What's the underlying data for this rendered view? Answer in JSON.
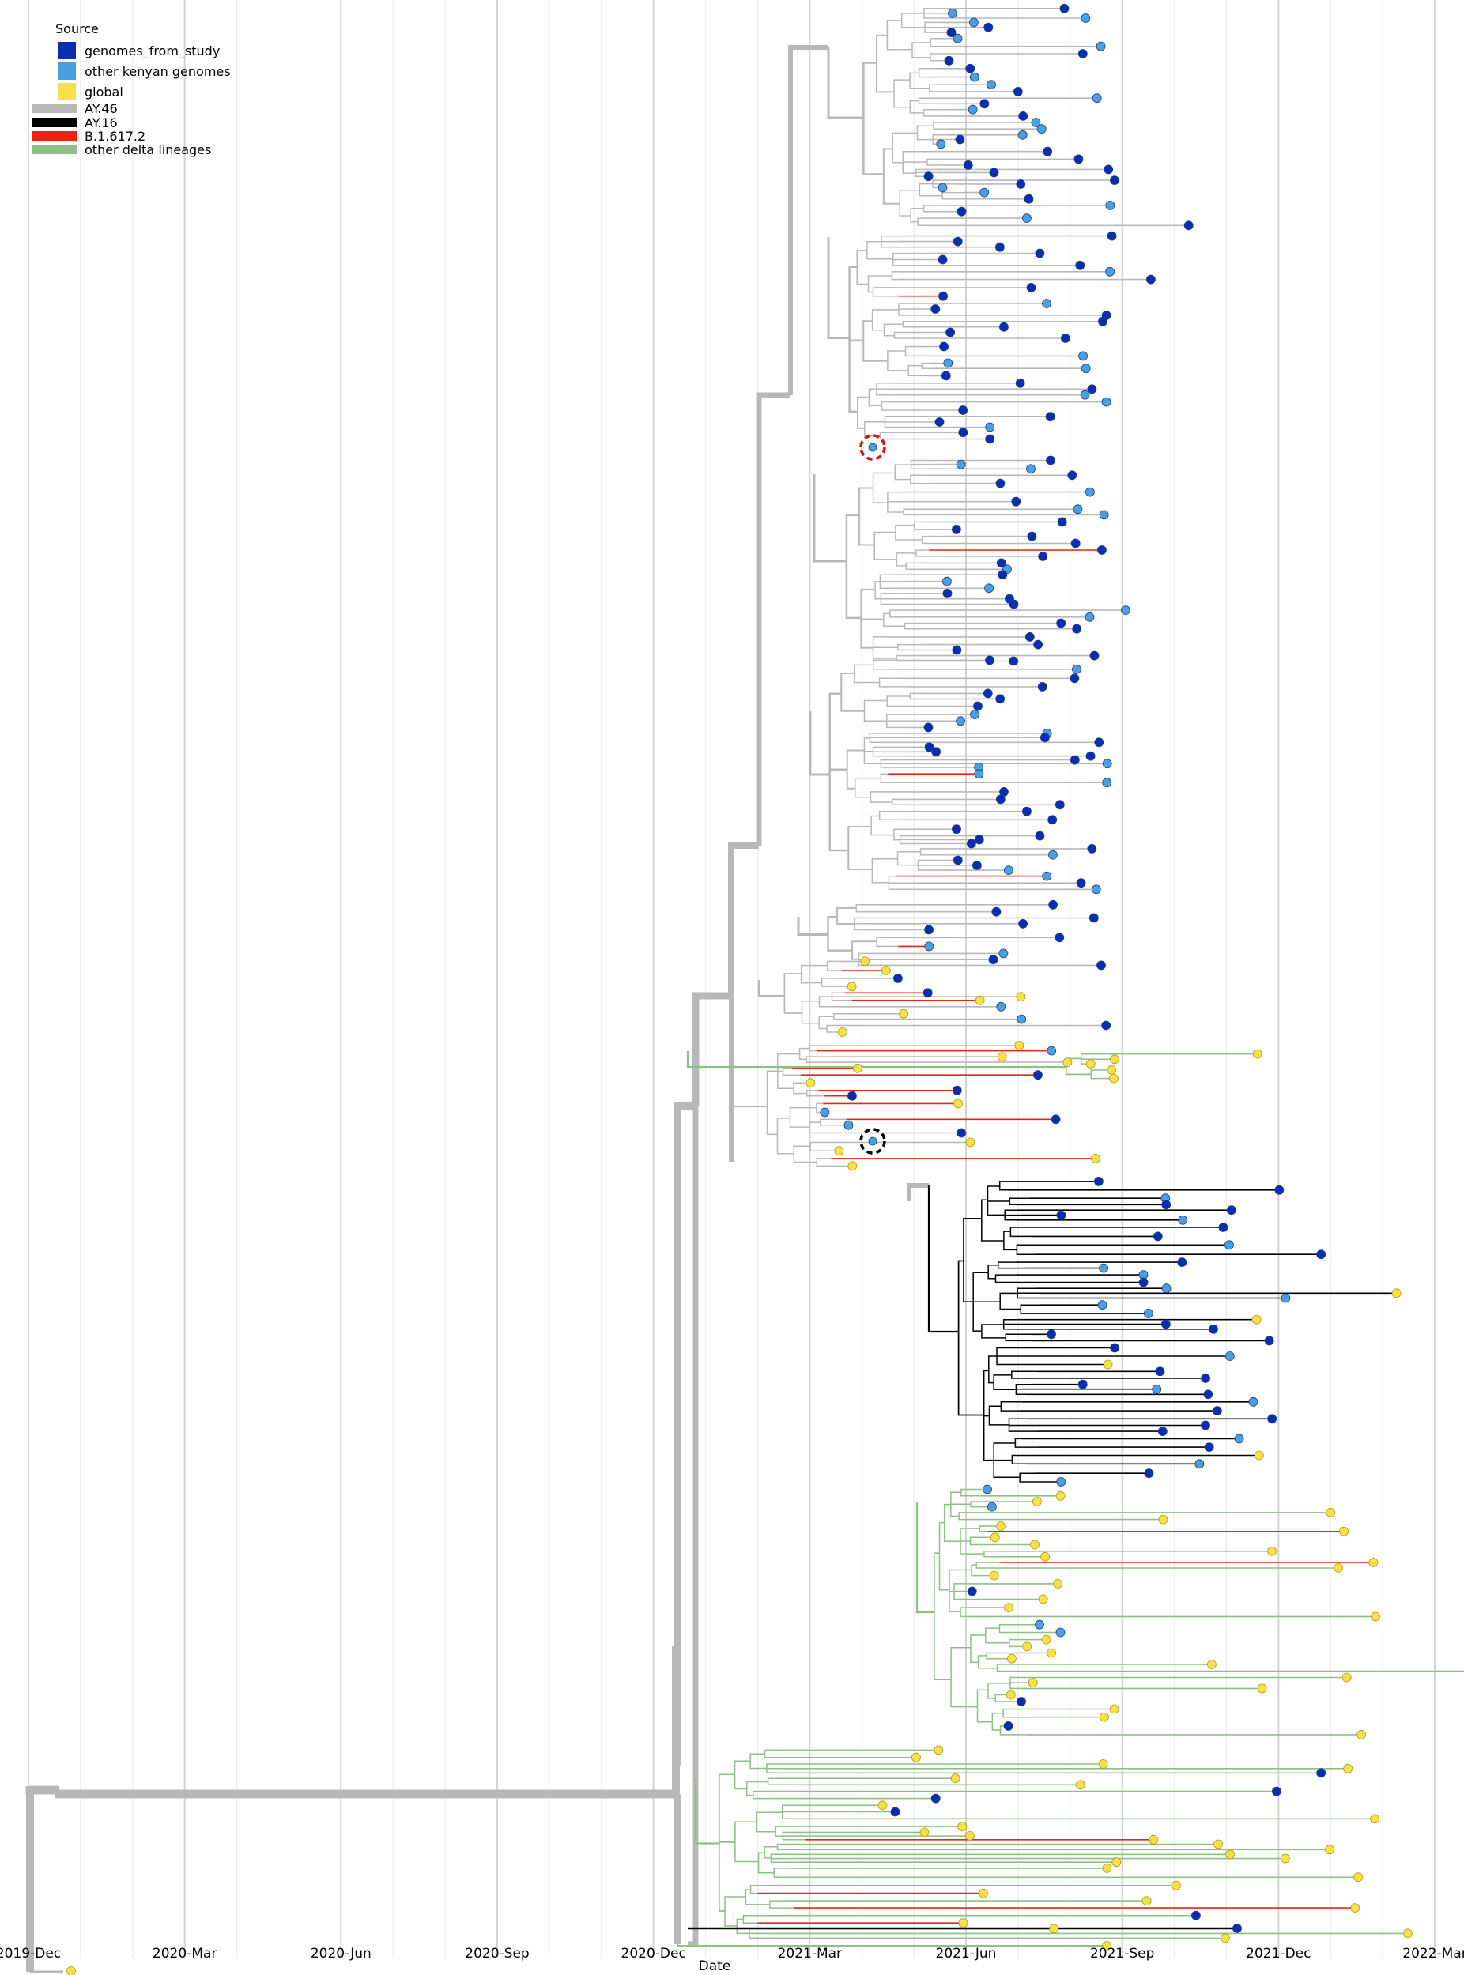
{
  "axis": {
    "xlabel": "Date",
    "ticks": [
      "2019-Dec",
      "2020-Mar",
      "2020-Jun",
      "2020-Sep",
      "2020-Dec",
      "2021-Mar",
      "2021-Jun",
      "2021-Sep",
      "2021-Dec",
      "2022-Mar"
    ]
  },
  "legend": {
    "source_title": "Source",
    "sources": [
      {
        "label": "genomes_from_study",
        "color": "#0a2eb0"
      },
      {
        "label": "other kenyan genomes",
        "color": "#4a9fe0"
      },
      {
        "label": "global",
        "color": "#f7e04a"
      }
    ],
    "lineages": [
      {
        "label": "AY.46",
        "color": "#b8b8b8"
      },
      {
        "label": "AY.16",
        "color": "#000000"
      },
      {
        "label": "B.1.617.2",
        "color": "#ee2211"
      },
      {
        "label": "other delta lineages",
        "color": "#8cc084"
      }
    ]
  },
  "highlights": [
    {
      "name": "red-dashed-circle",
      "color": "#dd1111",
      "date": "2021-Apr-20"
    },
    {
      "name": "black-dashed-circle",
      "color": "#000000",
      "date": "2021-Apr-20"
    }
  ]
}
